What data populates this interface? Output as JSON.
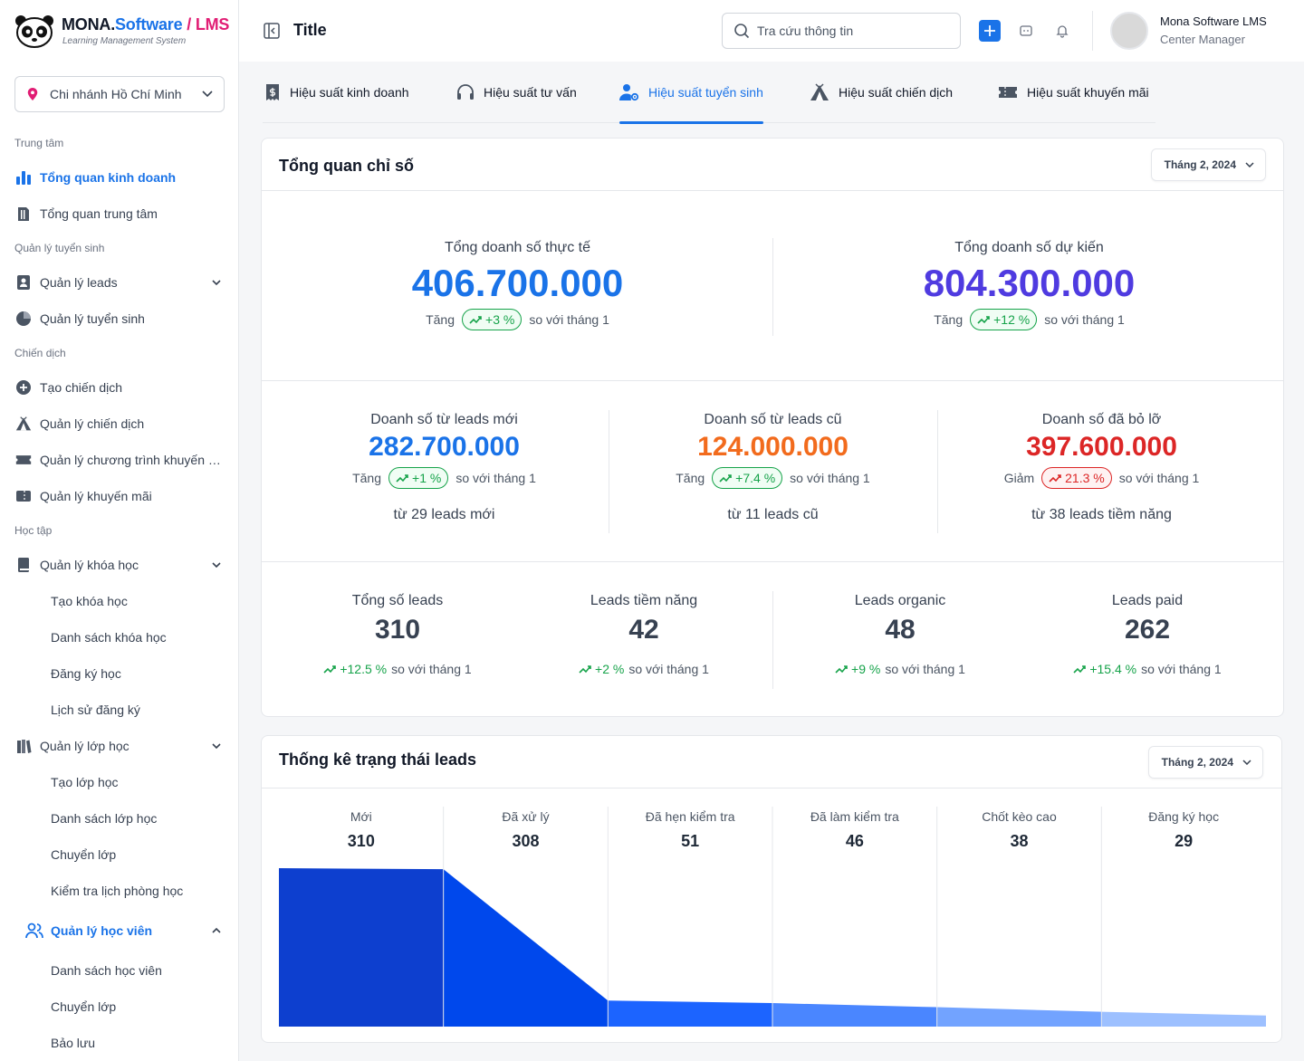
{
  "brand": {
    "name_a": "MONA.",
    "name_b": "Software",
    "name_sep": " / ",
    "name_c": "LMS",
    "subtitle": "Learning Management System"
  },
  "branch": {
    "label": "Chi nhánh Hồ Chí Minh"
  },
  "sidebar": {
    "sections": [
      {
        "title": "Trung tâm",
        "items": [
          {
            "label": "Tổng quan kinh doanh",
            "icon": "bar-chart-icon",
            "active": true
          },
          {
            "label": "Tổng quan trung tâm",
            "icon": "building-icon"
          }
        ]
      },
      {
        "title": "Quản lý tuyển sinh",
        "items": [
          {
            "label": "Quản lý leads",
            "icon": "contact-book-icon",
            "expandable": true
          },
          {
            "label": "Quản lý tuyển sinh",
            "icon": "pie-icon"
          }
        ]
      },
      {
        "title": "Chiến dịch",
        "items": [
          {
            "label": "Tạo chiến dịch",
            "icon": "plus-circle-icon"
          },
          {
            "label": "Quản lý chiến dịch",
            "icon": "tent-icon"
          },
          {
            "label": "Quản lý chương trình khuyến mãi",
            "icon": "ticket-icon"
          },
          {
            "label": "Quản lý khuyến mãi",
            "icon": "coupon-icon"
          }
        ]
      },
      {
        "title": "Học tập",
        "items": [
          {
            "label": "Quản lý khóa học",
            "icon": "book-icon",
            "expandable": true
          },
          {
            "label": "Tạo khóa học",
            "sub": true
          },
          {
            "label": "Danh sách khóa học",
            "sub": true
          },
          {
            "label": "Đăng ký học",
            "sub": true
          },
          {
            "label": "Lịch sử đăng ký",
            "sub": true
          },
          {
            "label": "Quản lý lớp học",
            "icon": "books-icon",
            "expandable": true
          },
          {
            "label": "Tạo lớp học",
            "sub": true
          },
          {
            "label": "Danh sách lớp học",
            "sub": true
          },
          {
            "label": "Chuyển lớp",
            "sub": true
          },
          {
            "label": "Kiểm tra lịch phòng học",
            "sub": true
          },
          {
            "label": "Quản lý học viên",
            "icon": "users-icon",
            "expanded": true
          },
          {
            "label": "Danh sách học viên",
            "sub": true
          },
          {
            "label": "Chuyển lớp",
            "sub": true
          },
          {
            "label": "Bảo lưu",
            "sub": true
          }
        ]
      }
    ]
  },
  "header": {
    "title": "Title",
    "search_placeholder": "Tra cứu thông tin",
    "user_name": "Mona Software LMS",
    "user_role": "Center Manager"
  },
  "tabs": [
    {
      "label": "Hiệu suất kinh doanh",
      "icon": "receipt-icon"
    },
    {
      "label": "Hiệu suất tư vấn",
      "icon": "headphones-icon"
    },
    {
      "label": "Hiệu suất tuyển sinh",
      "icon": "user-gear-icon",
      "active": true
    },
    {
      "label": "Hiệu suất chiến dịch",
      "icon": "tent-icon"
    },
    {
      "label": "Hiệu suất khuyến mãi",
      "icon": "ticket-icon"
    }
  ],
  "overview": {
    "title": "Tổng quan chỉ số",
    "date": "Tháng 2, 2024",
    "top": [
      {
        "label": "Tổng doanh số thực tế",
        "value": "406.700.000",
        "color": "#1a73e8",
        "dir": "Tăng",
        "pct": "+3 %",
        "trend": "up",
        "suffix": "so với tháng 1"
      },
      {
        "label": "Tổng doanh số dự kiến",
        "value": "804.300.000",
        "color": "#4f3be0",
        "dir": "Tăng",
        "pct": "+12 %",
        "trend": "up",
        "suffix": "so với tháng 1"
      }
    ],
    "mid": [
      {
        "label": "Doanh số từ leads mới",
        "value": "282.700.000",
        "color": "#1a73e8",
        "dir": "Tăng",
        "pct": "+1 %",
        "trend": "up",
        "suffix": "so với tháng 1",
        "note": "từ 29 leads mới"
      },
      {
        "label": "Doanh số từ leads cũ",
        "value": "124.000.000",
        "color": "#f26b1d",
        "dir": "Tăng",
        "pct": "+7.4 %",
        "trend": "up",
        "suffix": "so với tháng 1",
        "note": "từ 11 leads cũ"
      },
      {
        "label": "Doanh số đã bỏ lỡ",
        "value": "397.600.000",
        "color": "#dc2626",
        "dir": "Giảm",
        "pct": "21.3 %",
        "trend": "down",
        "suffix": "so với tháng 1",
        "note": "từ 38 leads tiềm năng"
      }
    ],
    "bottom": [
      {
        "label": "Tổng số leads",
        "value": "310",
        "pct": "+12.5 %",
        "suffix": "so với tháng 1"
      },
      {
        "label": "Leads tiềm năng",
        "value": "42",
        "pct": "+2 %",
        "suffix": "so với tháng 1"
      },
      {
        "label": "Leads organic",
        "value": "48",
        "pct": "+9 %",
        "suffix": "so với tháng 1"
      },
      {
        "label": "Leads paid",
        "value": "262",
        "pct": "+15.4 %",
        "suffix": "so với tháng 1"
      }
    ]
  },
  "funnel": {
    "title": "Thống kê trạng thái leads",
    "date": "Tháng 2, 2024"
  },
  "chart_data": {
    "type": "area",
    "title": "Thống kê trạng thái leads",
    "categories": [
      "Mới",
      "Đã xử lý",
      "Đã hẹn kiểm tra",
      "Đã làm kiểm tra",
      "Chốt kèo cao",
      "Đăng ký học"
    ],
    "values": [
      310,
      308,
      51,
      46,
      38,
      29
    ],
    "colors": [
      "#0d3fcf",
      "#0048ec",
      "#1c64ff",
      "#4a86ff",
      "#72a3ff",
      "#9dc0ff"
    ]
  }
}
